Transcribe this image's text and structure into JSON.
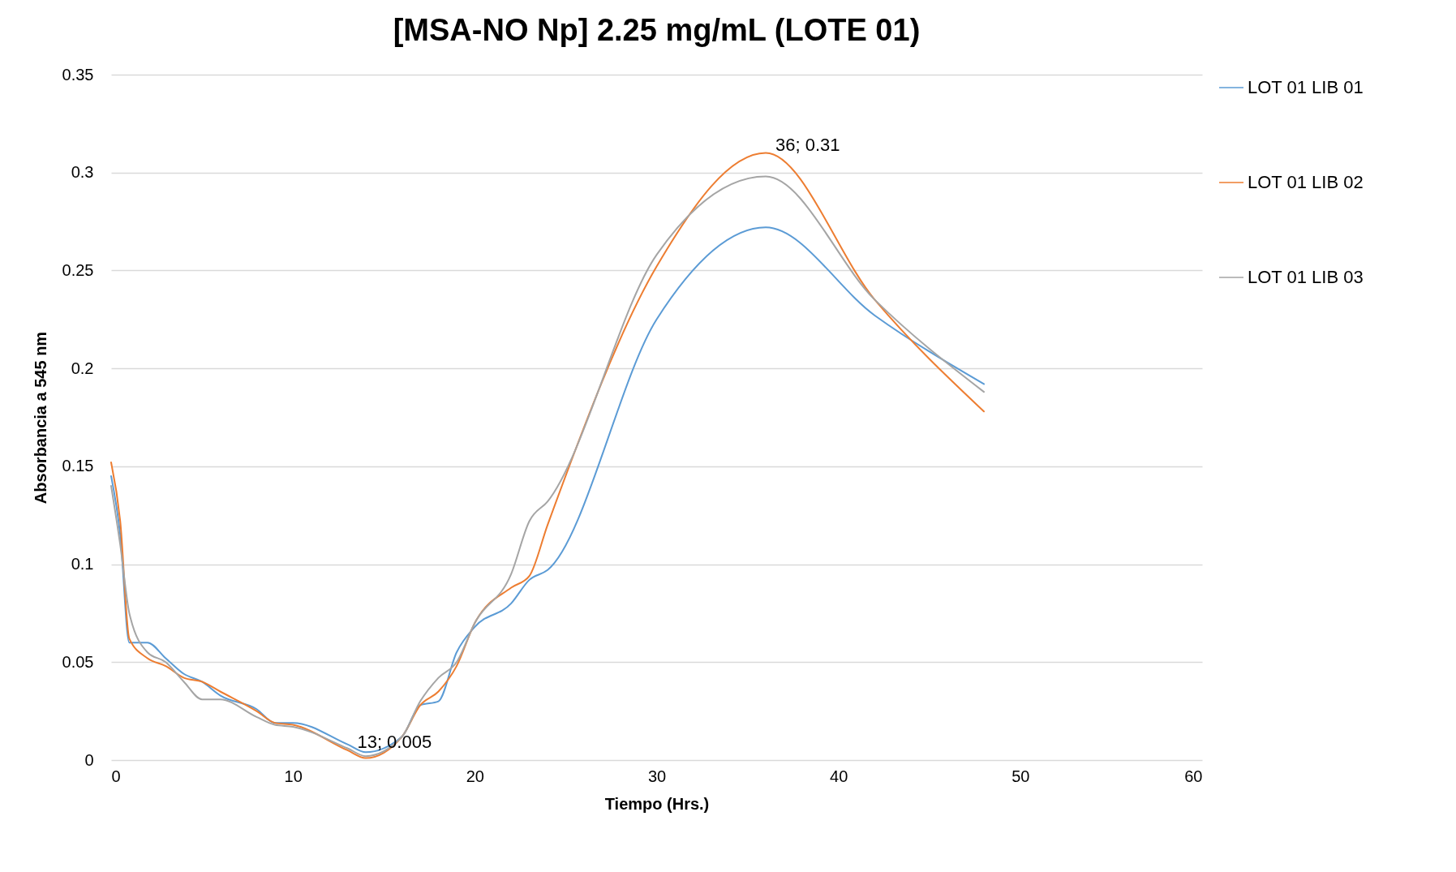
{
  "chart_data": {
    "type": "line",
    "title": "[MSA-NO Np] 2.25 mg/mL (LOTE 01)",
    "xlabel": "Tiempo (Hrs.)",
    "ylabel": "Absorbancia a 545 nm",
    "x": [
      0,
      0.5,
      1,
      2,
      3,
      4,
      5,
      6,
      8,
      9,
      10,
      13,
      14,
      16,
      17,
      18,
      19,
      20,
      22,
      23,
      24,
      30,
      36,
      42,
      48
    ],
    "series": [
      {
        "name": "LOT 01 LIB 01",
        "color": "#5b9bd5",
        "values": [
          0.145,
          0.115,
          0.06,
          0.06,
          0.052,
          0.044,
          0.04,
          0.033,
          0.026,
          0.019,
          0.019,
          0.008,
          0.004,
          0.012,
          0.028,
          0.03,
          0.055,
          0.068,
          0.08,
          0.092,
          0.097,
          0.225,
          0.272,
          0.227,
          0.192
        ]
      },
      {
        "name": "LOT 01 LIB 02",
        "color": "#ed7d31",
        "values": [
          0.152,
          0.122,
          0.062,
          0.052,
          0.048,
          0.042,
          0.04,
          0.035,
          0.025,
          0.019,
          0.018,
          0.005,
          0.001,
          0.012,
          0.028,
          0.035,
          0.048,
          0.07,
          0.088,
          0.094,
          0.12,
          0.252,
          0.31,
          0.235,
          0.178
        ]
      },
      {
        "name": "LOT 01 LIB 03",
        "color": "#a5a5a5",
        "values": [
          0.14,
          0.11,
          0.075,
          0.055,
          0.05,
          0.04,
          0.031,
          0.031,
          0.022,
          0.018,
          0.017,
          0.006,
          0.002,
          0.012,
          0.03,
          0.042,
          0.05,
          0.07,
          0.095,
          0.122,
          0.132,
          0.258,
          0.298,
          0.235,
          0.188
        ]
      }
    ],
    "annotations": [
      {
        "text": "13; 0.005",
        "x": 13,
        "y": 0.005
      },
      {
        "text": "36; 0.31",
        "x": 36,
        "y": 0.31
      }
    ],
    "xlim": [
      0,
      60
    ],
    "xticks": [
      0,
      10,
      20,
      30,
      40,
      50,
      60
    ],
    "ylim": [
      0,
      0.35
    ],
    "yticks": [
      0,
      0.05,
      0.1,
      0.15,
      0.2,
      0.25,
      0.3,
      0.35
    ],
    "grid": "y",
    "legend": "right"
  }
}
